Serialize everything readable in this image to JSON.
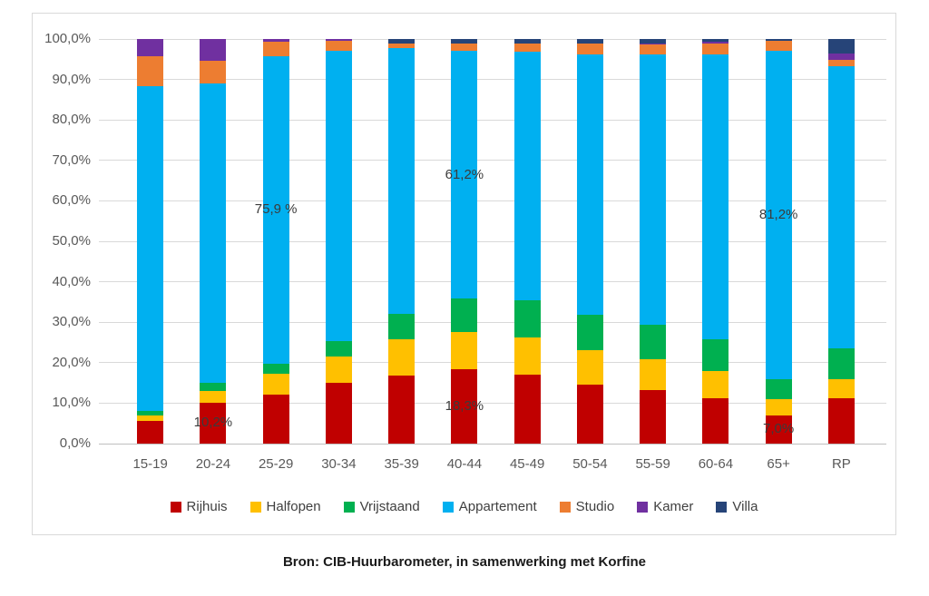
{
  "chart_data": {
    "type": "bar",
    "subtype": "stacked-100-percent",
    "title": "",
    "xlabel": "",
    "ylabel": "",
    "categories": [
      "15-19",
      "20-24",
      "25-29",
      "30-34",
      "35-39",
      "40-44",
      "45-49",
      "50-54",
      "55-59",
      "60-64",
      "65+",
      "RP"
    ],
    "series": [
      {
        "name": "Rijhuis",
        "color": "#C00000",
        "values": [
          5.7,
          10.2,
          12.2,
          15.0,
          16.8,
          18.3,
          17.1,
          14.6,
          13.2,
          11.3,
          7.0,
          11.3
        ]
      },
      {
        "name": "Halfopen",
        "color": "#FFC000",
        "values": [
          1.3,
          2.9,
          5.0,
          6.5,
          8.9,
          9.3,
          9.2,
          8.6,
          7.6,
          6.7,
          4.0,
          4.7
        ]
      },
      {
        "name": "Vrijstaand",
        "color": "#00B050",
        "values": [
          1.0,
          1.9,
          2.6,
          3.8,
          6.4,
          8.2,
          9.1,
          8.7,
          8.5,
          7.7,
          4.9,
          7.5
        ]
      },
      {
        "name": "Appartement",
        "color": "#00B0F0",
        "values": [
          80.3,
          74.1,
          75.9,
          71.9,
          65.7,
          61.2,
          61.4,
          64.3,
          67.0,
          70.5,
          81.2,
          69.7
        ]
      },
      {
        "name": "Studio",
        "color": "#ED7D31",
        "values": [
          7.4,
          5.5,
          3.6,
          2.3,
          1.1,
          1.9,
          2.0,
          2.6,
          2.4,
          2.7,
          2.4,
          1.6
        ]
      },
      {
        "name": "Kamer",
        "color": "#7030A0",
        "values": [
          4.3,
          5.4,
          0.7,
          0.5,
          0.0,
          0.0,
          0.0,
          0.0,
          0.3,
          0.4,
          0.0,
          1.7
        ]
      },
      {
        "name": "Villa",
        "color": "#264478",
        "values": [
          0.0,
          0.0,
          0.0,
          0.0,
          1.1,
          1.1,
          1.2,
          1.2,
          1.0,
          0.7,
          0.5,
          3.5
        ]
      }
    ],
    "y_axis": {
      "min": 0,
      "max": 100,
      "step": 10,
      "grid": true,
      "tick_labels": [
        "0,0%",
        "10,0%",
        "20,0%",
        "30,0%",
        "40,0%",
        "50,0%",
        "60,0%",
        "70,0%",
        "80,0%",
        "90,0%",
        "100,0%"
      ]
    },
    "data_labels": [
      {
        "category": "20-24",
        "series": "Rijhuis",
        "text": "10,2%"
      },
      {
        "category": "25-29",
        "series": "Appartement",
        "text": "75,9 %"
      },
      {
        "category": "40-44",
        "series": "Rijhuis",
        "text": "18,3%"
      },
      {
        "category": "40-44",
        "series": "Appartement",
        "text": "61,2%"
      },
      {
        "category": "65+",
        "series": "Rijhuis",
        "text": "7,0%"
      },
      {
        "category": "65+",
        "series": "Appartement",
        "text": "81,2%"
      }
    ],
    "legend": {
      "position": "bottom",
      "items": [
        "Rijhuis",
        "Halfopen",
        "Vrijstaand",
        "Appartement",
        "Studio",
        "Kamer",
        "Villa"
      ]
    }
  },
  "source_note": "Bron: CIB-Huurbarometer, in samenwerking met Korfine"
}
